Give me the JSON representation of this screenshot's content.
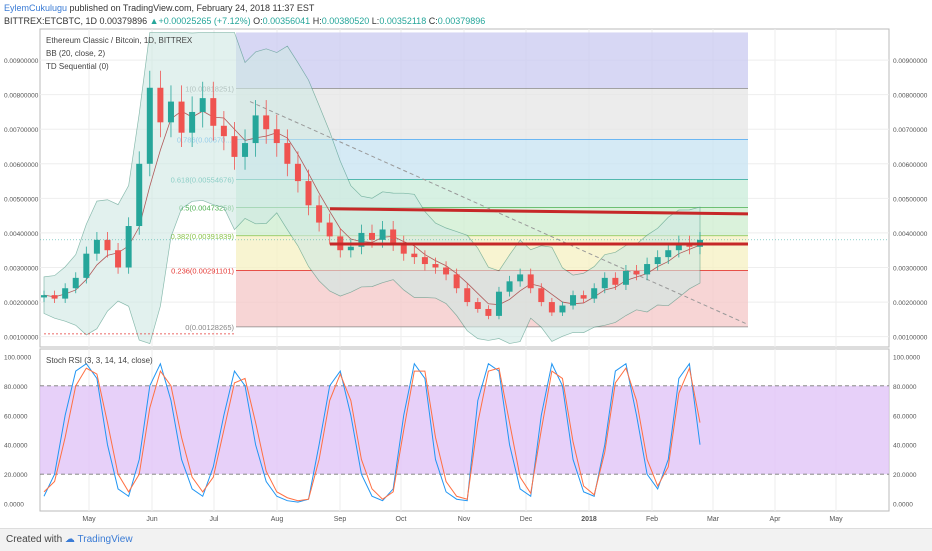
{
  "header": {
    "user": "EylemCukulugu",
    "published_text": "published on TradingView.com, February 24, 2018 11:37 EST",
    "symbol": "BITTREX:ETCBTC, 1D",
    "last": "0.00379896",
    "change": "+0.00025265 (+7.12%)",
    "ohlc_label_o": "O:",
    "ohlc_o": "0.00356041",
    "ohlc_label_h": "H:",
    "ohlc_h": "0.00380520",
    "ohlc_label_l": "L:",
    "ohlc_l": "0.00352118",
    "ohlc_label_c": "C:",
    "ohlc_c": "0.00379896"
  },
  "legend": {
    "title": "Ethereum Classic / Bitcoin, 1D, BITTREX",
    "bb": "BB (20, close, 2)",
    "td": "TD Sequential (0)",
    "stoch": "Stoch RSI (3, 3, 14, 14, close)"
  },
  "footer": {
    "created": "Created with",
    "brand": "TradingView"
  },
  "colors": {
    "up": "#26a69a",
    "down": "#ef5350",
    "bb_fill": "#cfe9e4",
    "bb_line": "#3e8f7a",
    "resistance": "#c62828",
    "stoch_k": "#2196f3",
    "stoch_d": "#ff7043",
    "stoch_band": "#e1c4f7"
  },
  "chart_data": [
    {
      "type": "candlestick",
      "title": "Ethereum Classic / Bitcoin, 1D, BITTREX",
      "x_ticks": [
        "May",
        "Jun",
        "Jul",
        "Aug",
        "Sep",
        "Oct",
        "Nov",
        "Dec",
        "2018",
        "Feb",
        "Mar",
        "Apr",
        "May"
      ],
      "y_ticks": [
        "0.00900000",
        "0.00800000",
        "0.00700000",
        "0.00600000",
        "0.00500000",
        "0.00400000",
        "0.00300000",
        "0.00200000",
        "0.00100000"
      ],
      "ylim": [
        0.0007,
        0.0099
      ],
      "fib_levels": [
        {
          "label": "0(0.00128265)",
          "value": 0.00128265
        },
        {
          "label": "0.236(0.00291101)",
          "value": 0.00291101
        },
        {
          "label": "0.382(0.00391839)",
          "value": 0.00391839
        },
        {
          "label": "0.5(0.00473258)",
          "value": 0.00473258
        },
        {
          "label": "0.618(0.00554676)",
          "value": 0.00554676
        },
        {
          "label": "0.786(0.00670...)",
          "value": 0.0067
        },
        {
          "label": "1(0.00818251)",
          "value": 0.00818251
        }
      ],
      "resistance_lines": [
        0.00455,
        0.00368
      ],
      "close_approx": [
        0.0022,
        0.0021,
        0.0024,
        0.0027,
        0.0034,
        0.0038,
        0.0035,
        0.003,
        0.0042,
        0.006,
        0.0082,
        0.0072,
        0.0078,
        0.0069,
        0.0075,
        0.0079,
        0.0071,
        0.0068,
        0.0062,
        0.0066,
        0.0074,
        0.007,
        0.0066,
        0.006,
        0.0055,
        0.0048,
        0.0043,
        0.0039,
        0.0035,
        0.0036,
        0.004,
        0.0038,
        0.0041,
        0.0037,
        0.0034,
        0.0033,
        0.0031,
        0.003,
        0.0028,
        0.0024,
        0.002,
        0.0018,
        0.0016,
        0.0023,
        0.0026,
        0.0028,
        0.0024,
        0.002,
        0.0017,
        0.0019,
        0.0022,
        0.0021,
        0.0024,
        0.0027,
        0.0025,
        0.0029,
        0.0028,
        0.0031,
        0.0033,
        0.0035,
        0.0037,
        0.0036,
        0.0038
      ]
    },
    {
      "type": "line",
      "title": "Stoch RSI (3, 3, 14, 14, close)",
      "y_ticks": [
        "100.0000",
        "80.0000",
        "60.0000",
        "40.0000",
        "20.0000",
        "0.0000"
      ],
      "ylim": [
        -5,
        105
      ],
      "band": [
        20,
        80
      ],
      "series": [
        {
          "name": "K",
          "values": [
            5,
            20,
            60,
            90,
            95,
            85,
            40,
            10,
            5,
            30,
            80,
            95,
            70,
            30,
            10,
            5,
            25,
            60,
            90,
            80,
            40,
            15,
            5,
            2,
            1,
            3,
            40,
            80,
            90,
            60,
            20,
            5,
            2,
            10,
            60,
            95,
            85,
            30,
            8,
            3,
            2,
            70,
            95,
            90,
            40,
            10,
            5,
            60,
            95,
            80,
            30,
            8,
            5,
            40,
            90,
            95,
            60,
            20,
            10,
            30,
            85,
            95,
            40
          ]
        },
        {
          "name": "D",
          "values": [
            8,
            15,
            45,
            80,
            92,
            88,
            55,
            20,
            8,
            20,
            65,
            90,
            80,
            45,
            18,
            8,
            18,
            50,
            82,
            85,
            55,
            22,
            8,
            4,
            2,
            3,
            30,
            70,
            88,
            70,
            30,
            10,
            3,
            8,
            50,
            90,
            90,
            45,
            15,
            5,
            3,
            55,
            90,
            92,
            55,
            18,
            7,
            50,
            90,
            85,
            42,
            12,
            6,
            35,
            82,
            92,
            70,
            30,
            12,
            25,
            75,
            92,
            55
          ]
        }
      ]
    }
  ]
}
